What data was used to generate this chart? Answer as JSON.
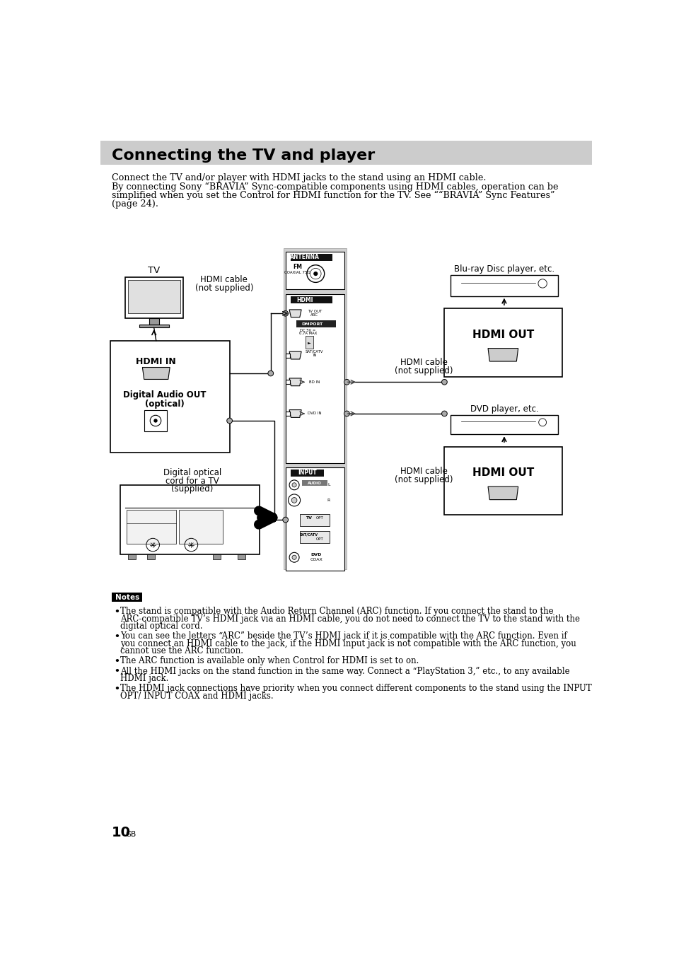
{
  "title": "Connecting the TV and player",
  "title_bg": "#c8c8c8",
  "page_bg": "#ffffff",
  "intro_text": [
    "Connect the TV and/or player with HDMI jacks to the stand using an HDMI cable.",
    "By connecting Sony “BRAVIA” Sync-compatible components using HDMI cables, operation can be",
    "simplified when you set the Control for HDMI function for the TV. See ““BRAVIA” Sync Features”",
    "(page 24)."
  ],
  "notes_title": "Notes",
  "notes": [
    "The stand is compatible with the Audio Return Channel (ARC) function. If you connect the stand to the ARC-compatible TV’s HDMI jack via an HDMI cable, you do not need to connect the TV to the stand with the digital optical cord.",
    "You can see the letters “ARC” beside the TV’s HDMI jack if it is compatible with the ARC function. Even if you connect an HDMI cable to the jack, if the HDMI input jack is not compatible with the ARC function, you cannot use the ARC function.",
    "The ARC function is available only when Control for HDMI is set to on.",
    "All the HDMI jacks on the stand function in the same way. Connect a “PlayStation 3,” etc., to any available HDMI jack.",
    "The HDMI jack connections have priority when you connect different components to the stand using the INPUT OPT/ INPUT COAX and HDMI jacks."
  ],
  "page_number": "10",
  "page_suffix": "GB",
  "panel_gray": "#d4d4d4",
  "white": "#ffffff",
  "black": "#000000",
  "dark_gray": "#555555",
  "light_gray": "#e8e8e8",
  "connector_gray": "#aaaaaa"
}
